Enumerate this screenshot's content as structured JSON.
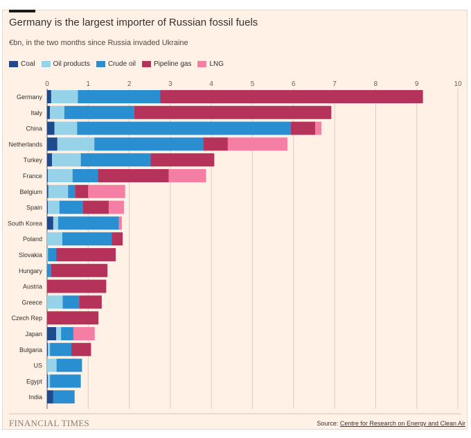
{
  "header": {
    "title": "Germany is the largest importer of Russian fossil fuels",
    "subtitle": "€bn, in the two months since Russia invaded Ukraine"
  },
  "footer": {
    "logo": "FINANCIAL TIMES",
    "source_prefix": "Source: ",
    "source_link": "Centre for Research on Energy and Clean Air"
  },
  "colors": {
    "Coal": "#1f4b8c",
    "Oil products": "#96d2e8",
    "Crude oil": "#2a8fd1",
    "Pipeline gas": "#b5325a",
    "LNG": "#f57ea4"
  },
  "chart_data": {
    "type": "bar",
    "orientation": "horizontal",
    "stacked": true,
    "xlim": [
      0,
      10
    ],
    "x_ticks": [
      "0",
      "1",
      "2",
      "3",
      "4",
      "5",
      "6",
      "7",
      "8",
      "9",
      "10"
    ],
    "grid": true,
    "legend_position": "top-left",
    "categories": [
      "Germany",
      "Italy",
      "China",
      "Netherlands",
      "Turkey",
      "France",
      "Belgium",
      "Spain",
      "South Korea",
      "Poland",
      "Slovakia",
      "Hungary",
      "Austria",
      "Greece",
      "Czech Rep",
      "Japan",
      "Bulgaria",
      "US",
      "Egypt",
      "India"
    ],
    "series": [
      {
        "name": "Coal",
        "values": [
          0.1,
          0.07,
          0.18,
          0.25,
          0.12,
          0.02,
          0.03,
          0.02,
          0.15,
          0.0,
          0.0,
          0.0,
          0.0,
          0.0,
          0.0,
          0.22,
          0.02,
          0.0,
          0.02,
          0.15
        ]
      },
      {
        "name": "Oil products",
        "values": [
          0.65,
          0.35,
          0.55,
          0.9,
          0.7,
          0.6,
          0.48,
          0.28,
          0.12,
          0.37,
          0.02,
          0.0,
          0.0,
          0.38,
          0.0,
          0.12,
          0.05,
          0.23,
          0.05,
          0.0
        ]
      },
      {
        "name": "Crude oil",
        "values": [
          2.0,
          1.7,
          5.2,
          2.65,
          1.7,
          0.62,
          0.17,
          0.57,
          1.48,
          1.2,
          0.2,
          0.1,
          0.0,
          0.4,
          0.0,
          0.3,
          0.52,
          0.62,
          0.75,
          0.52
        ]
      },
      {
        "name": "Pipeline gas",
        "values": [
          6.4,
          4.8,
          0.6,
          0.6,
          1.55,
          1.72,
          0.32,
          0.63,
          0.0,
          0.27,
          1.45,
          1.37,
          1.44,
          0.55,
          1.25,
          0.0,
          0.48,
          0.0,
          0.0,
          0.0
        ]
      },
      {
        "name": "LNG",
        "values": [
          0.0,
          0.0,
          0.15,
          1.45,
          0.0,
          0.91,
          0.9,
          0.37,
          0.07,
          0.0,
          0.0,
          0.0,
          0.0,
          0.0,
          0.0,
          0.52,
          0.0,
          0.0,
          0.0,
          0.0
        ]
      }
    ]
  }
}
